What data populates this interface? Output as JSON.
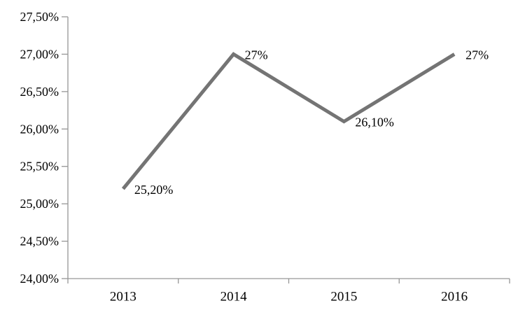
{
  "chart_data": {
    "type": "line",
    "title": "",
    "xlabel": "",
    "ylabel": "",
    "categories": [
      "2013",
      "2014",
      "2015",
      "2016"
    ],
    "series": [
      {
        "name": "",
        "values": [
          25.2,
          27.0,
          26.1,
          27.0
        ],
        "data_labels": [
          "25,20%",
          "27%",
          "26,10%",
          "27%"
        ]
      }
    ],
    "ylim": [
      24.0,
      27.5
    ],
    "y_step": 0.5,
    "y_tick_labels": [
      "27,50%",
      "27,00%",
      "26,50%",
      "26,00%",
      "25,50%",
      "25,00%",
      "24,50%",
      "24,00%"
    ],
    "grid": false,
    "legend": "none",
    "colors": {
      "line": "#747474",
      "axis": "#969696",
      "text": "#000000",
      "background": "#ffffff"
    }
  }
}
